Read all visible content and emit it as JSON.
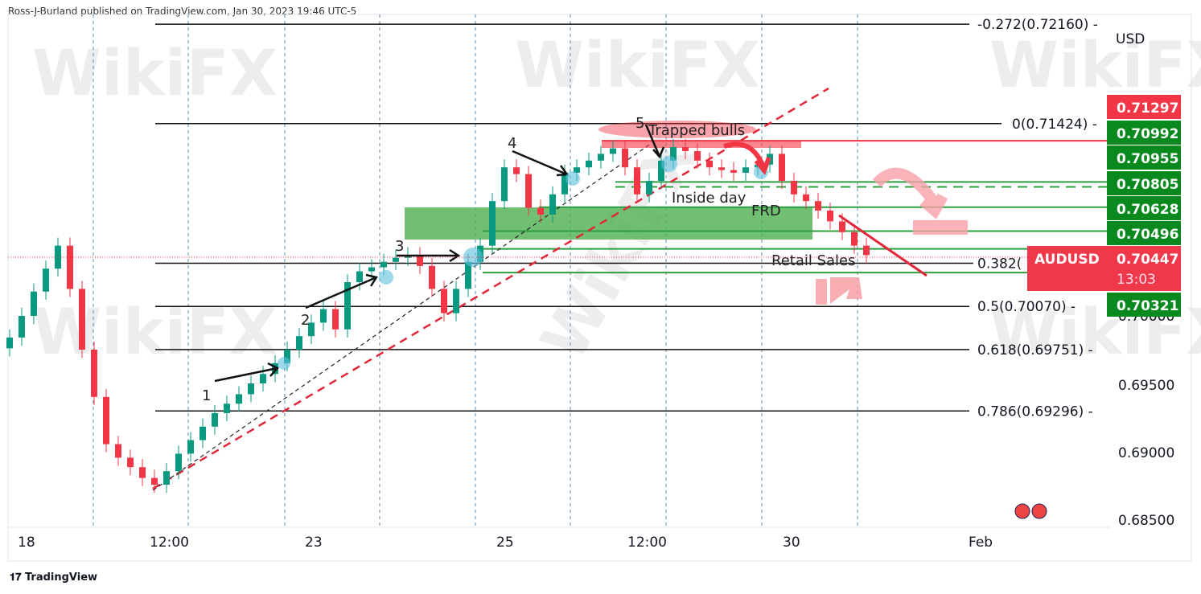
{
  "header": {
    "published": "Ross-J-Burland published on TradingView.com, Jan 30, 2023 19:46 UTC-5"
  },
  "footer": {
    "logo": "TradingView"
  },
  "watermark": "WikiFX",
  "colors": {
    "up": "#089981",
    "down": "#f23645",
    "green_level": "#2e9e3e",
    "red_level": "#f23645",
    "zone": "#4caf50",
    "price_badge_green": "#0a8a1e",
    "price_badge_red": "#f23645"
  },
  "chart_data": {
    "type": "candlestick",
    "symbol": "AUDUSD",
    "currency": "USD",
    "x_tick_labels": [
      "18",
      "12:00",
      "23",
      "25",
      "12:00",
      "30",
      "Feb"
    ],
    "y_tick_labels": [
      "0.70000",
      "0.69500",
      "0.69000",
      "0.68500"
    ],
    "ylim": [
      0.684,
      0.7225
    ],
    "grid": "vertical-dashed",
    "close": [
      0.6984,
      0.7,
      0.7018,
      0.7035,
      0.7052,
      0.702,
      0.6975,
      0.694,
      0.6905,
      0.6895,
      0.6888,
      0.688,
      0.6875,
      0.6885,
      0.6898,
      0.6908,
      0.6918,
      0.6928,
      0.6935,
      0.6942,
      0.695,
      0.6957,
      0.6965,
      0.6975,
      0.6985,
      0.6995,
      0.7005,
      0.699,
      0.7025,
      0.7033,
      0.7036,
      0.704,
      0.7043,
      0.7045,
      0.7037,
      0.702,
      0.7002,
      0.702,
      0.704,
      0.7052,
      0.7085,
      0.711,
      0.7105,
      0.708,
      0.7075,
      0.709,
      0.7106,
      0.711,
      0.7115,
      0.712,
      0.7124,
      0.711,
      0.709,
      0.71,
      0.7115,
      0.7125,
      0.7122,
      0.7115,
      0.711,
      0.7108,
      0.7106,
      0.711,
      0.7112,
      0.712,
      0.71,
      0.709,
      0.7085,
      0.7078,
      0.707,
      0.7062,
      0.7052,
      0.7045
    ],
    "fib_levels": [
      {
        "label": "-0.272(0.72160)",
        "price": 0.7216
      },
      {
        "label": "0(0.71424)",
        "price": 0.71424
      },
      {
        "label": "0.382(",
        "price": 0.7039
      },
      {
        "label": "0.5(0.70070)",
        "price": 0.7007
      },
      {
        "label": "0.618(0.69751)",
        "price": 0.69751
      },
      {
        "label": "0.786(0.69296)",
        "price": 0.69296
      }
    ],
    "horizontal_levels": [
      {
        "price": 0.71297,
        "color": "red",
        "style": "solid"
      },
      {
        "price": 0.70992,
        "color": "green",
        "style": "solid"
      },
      {
        "price": 0.70955,
        "color": "green",
        "style": "dashed"
      },
      {
        "price": 0.70805,
        "color": "green",
        "style": "solid"
      },
      {
        "price": 0.70628,
        "color": "green",
        "style": "solid"
      },
      {
        "price": 0.70496,
        "color": "green",
        "style": "solid"
      },
      {
        "price": 0.70321,
        "color": "green",
        "style": "solid"
      }
    ],
    "price_badges": [
      {
        "value": "0.71297",
        "color": "red"
      },
      {
        "value": "0.70992",
        "color": "green"
      },
      {
        "value": "0.70955",
        "color": "green"
      },
      {
        "value": "0.70805",
        "color": "green"
      },
      {
        "value": "0.70628",
        "color": "green"
      },
      {
        "value": "0.70496",
        "color": "green"
      },
      {
        "value": "0.70321",
        "color": "green"
      }
    ],
    "current": {
      "symbol": "AUDUSD",
      "price": "0.70447",
      "countdown": "13:03"
    },
    "annotations": [
      "1",
      "2",
      "3",
      "4",
      "5",
      "Trapped bulls",
      "Inside day",
      "FRD",
      "Retail Sales"
    ]
  }
}
